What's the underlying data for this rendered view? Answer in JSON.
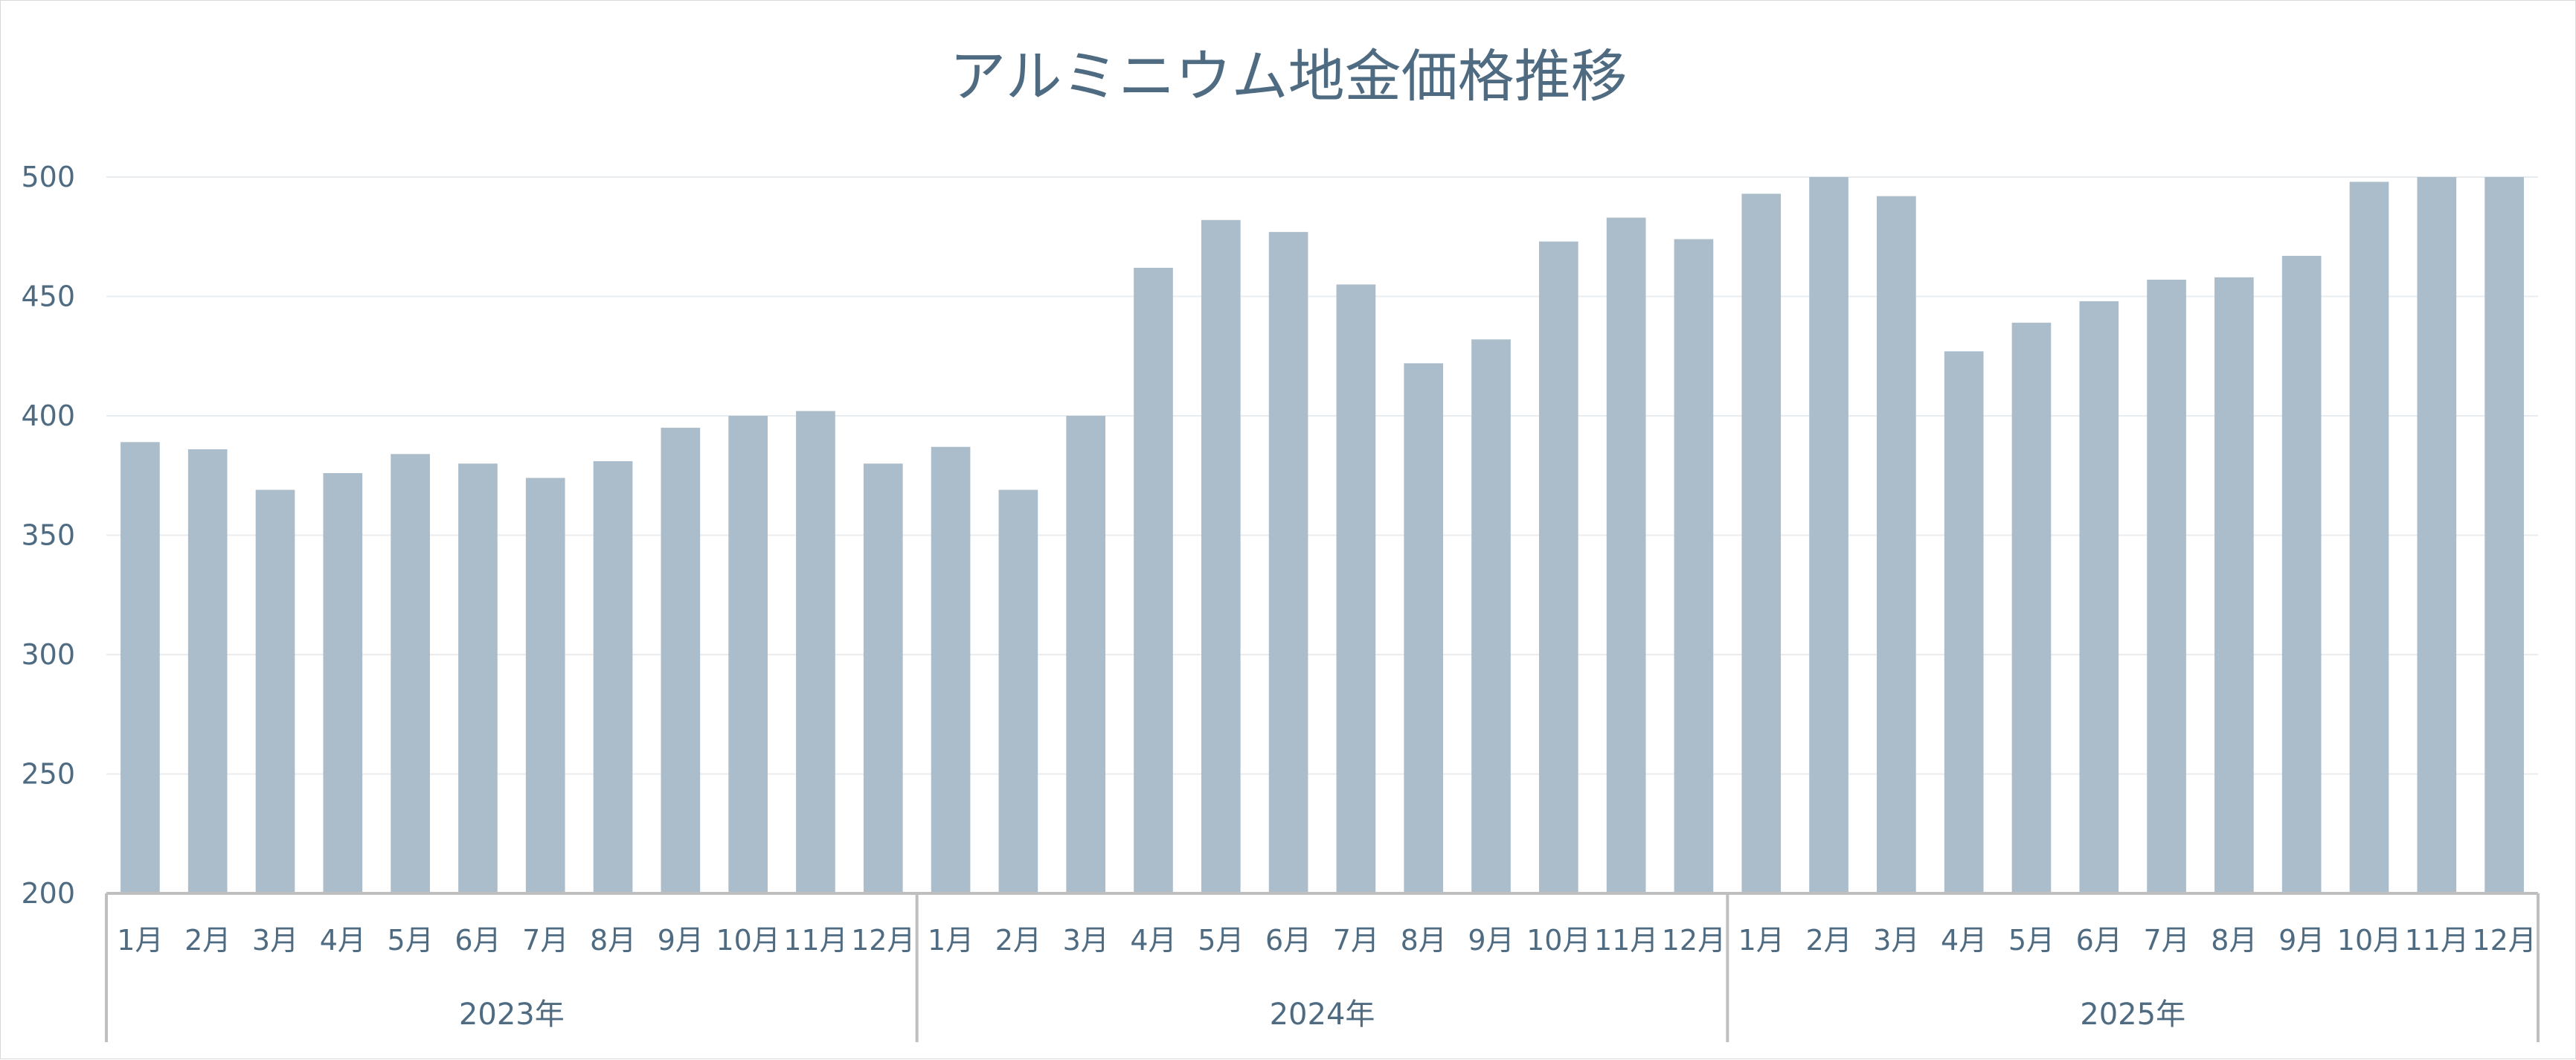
{
  "chart_data": {
    "type": "bar",
    "title": "アルミニウム地金価格推移",
    "xlabel": "",
    "ylabel": "",
    "ylim": [
      200,
      500
    ],
    "yticks": [
      200,
      250,
      300,
      350,
      400,
      450,
      500
    ],
    "grid": true,
    "legend": "none",
    "color": "#abbdca",
    "groups": [
      {
        "label": "2023年",
        "categories": [
          "1月",
          "2月",
          "3月",
          "4月",
          "5月",
          "6月",
          "7月",
          "8月",
          "9月",
          "10月",
          "11月",
          "12月"
        ]
      },
      {
        "label": "2024年",
        "categories": [
          "1月",
          "2月",
          "3月",
          "4月",
          "5月",
          "6月",
          "7月",
          "8月",
          "9月",
          "10月",
          "11月",
          "12月"
        ]
      },
      {
        "label": "2025年",
        "categories": [
          "1月",
          "2月",
          "3月",
          "4月",
          "5月",
          "6月",
          "7月",
          "8月",
          "9月",
          "10月",
          "11月",
          "12月"
        ]
      }
    ],
    "values": [
      389,
      386,
      369,
      376,
      384,
      380,
      374,
      381,
      395,
      400,
      402,
      380,
      387,
      369,
      400,
      462,
      482,
      477,
      455,
      422,
      432,
      473,
      483,
      474,
      493,
      500,
      492,
      427,
      439,
      448,
      457,
      458,
      467,
      498,
      500,
      500
    ]
  }
}
